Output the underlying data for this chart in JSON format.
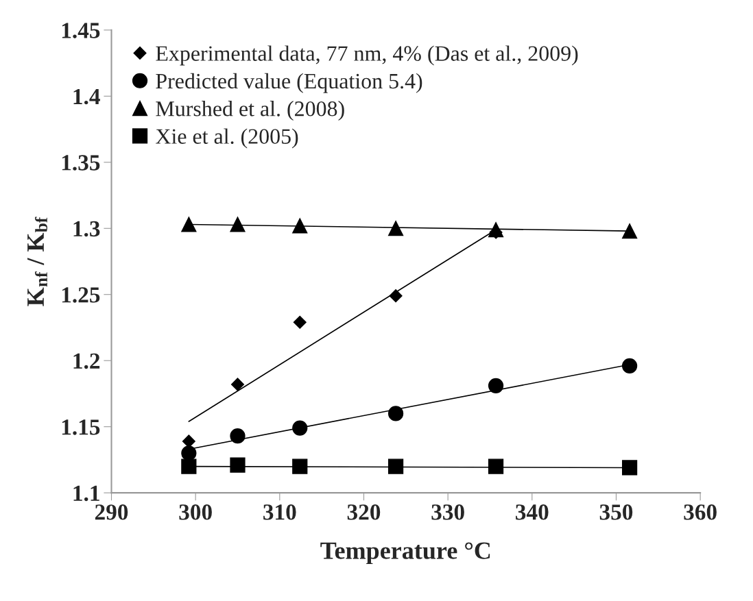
{
  "chart_data": {
    "type": "scatter",
    "xlabel": "Temperature °C",
    "ylabel": "K$_{nf}$ / K$_{bf}$",
    "xlim": [
      290,
      360
    ],
    "xticks": [
      290,
      300,
      310,
      320,
      330,
      340,
      350,
      360
    ],
    "ylim": [
      1.1,
      1.45
    ],
    "yticks": [
      1.1,
      1.15,
      1.2,
      1.25,
      1.3,
      1.35,
      1.4,
      1.45
    ],
    "grid": false,
    "legend": "top left",
    "series": [
      {
        "name": "Experimental data, 77 nm, 4% (Das et al., 2009)",
        "marker": "diamond",
        "color": "#000000",
        "x": [
          299.2,
          305.0,
          312.4,
          323.8,
          335.7
        ],
        "values": [
          1.139,
          1.182,
          1.229,
          1.249,
          1.297
        ]
      },
      {
        "name": "Predicted value (Equation 5.4)",
        "marker": "circle",
        "color": "#000000",
        "x": [
          299.2,
          305.0,
          312.4,
          323.8,
          335.7,
          351.6
        ],
        "values": [
          1.13,
          1.143,
          1.149,
          1.16,
          1.181,
          1.196
        ]
      },
      {
        "name": "Murshed et al. (2008)",
        "marker": "triangle",
        "color": "#000000",
        "x": [
          299.2,
          305.0,
          312.4,
          323.8,
          335.7,
          351.6
        ],
        "values": [
          1.303,
          1.303,
          1.302,
          1.3,
          1.299,
          1.298
        ]
      },
      {
        "name": "Xie et al. (2005)",
        "marker": "square",
        "color": "#000000",
        "x": [
          299.2,
          305.0,
          312.4,
          323.8,
          335.7,
          351.6
        ],
        "values": [
          1.12,
          1.121,
          1.12,
          1.12,
          1.12,
          1.119
        ]
      },
      {
        "type": "line",
        "marker": "none",
        "color": "#000000",
        "x": [
          299.2,
          335.7
        ],
        "values": [
          1.154,
          1.299
        ]
      },
      {
        "type": "line",
        "marker": "none",
        "color": "#000000",
        "x": [
          299.2,
          351.6
        ],
        "values": [
          1.133,
          1.197
        ]
      },
      {
        "type": "line",
        "marker": "none",
        "color": "#000000",
        "x": [
          299.2,
          351.6
        ],
        "values": [
          1.303,
          1.298
        ]
      },
      {
        "type": "line",
        "marker": "none",
        "color": "#000000",
        "x": [
          299.2,
          351.6
        ],
        "values": [
          1.12,
          1.119
        ]
      }
    ]
  }
}
